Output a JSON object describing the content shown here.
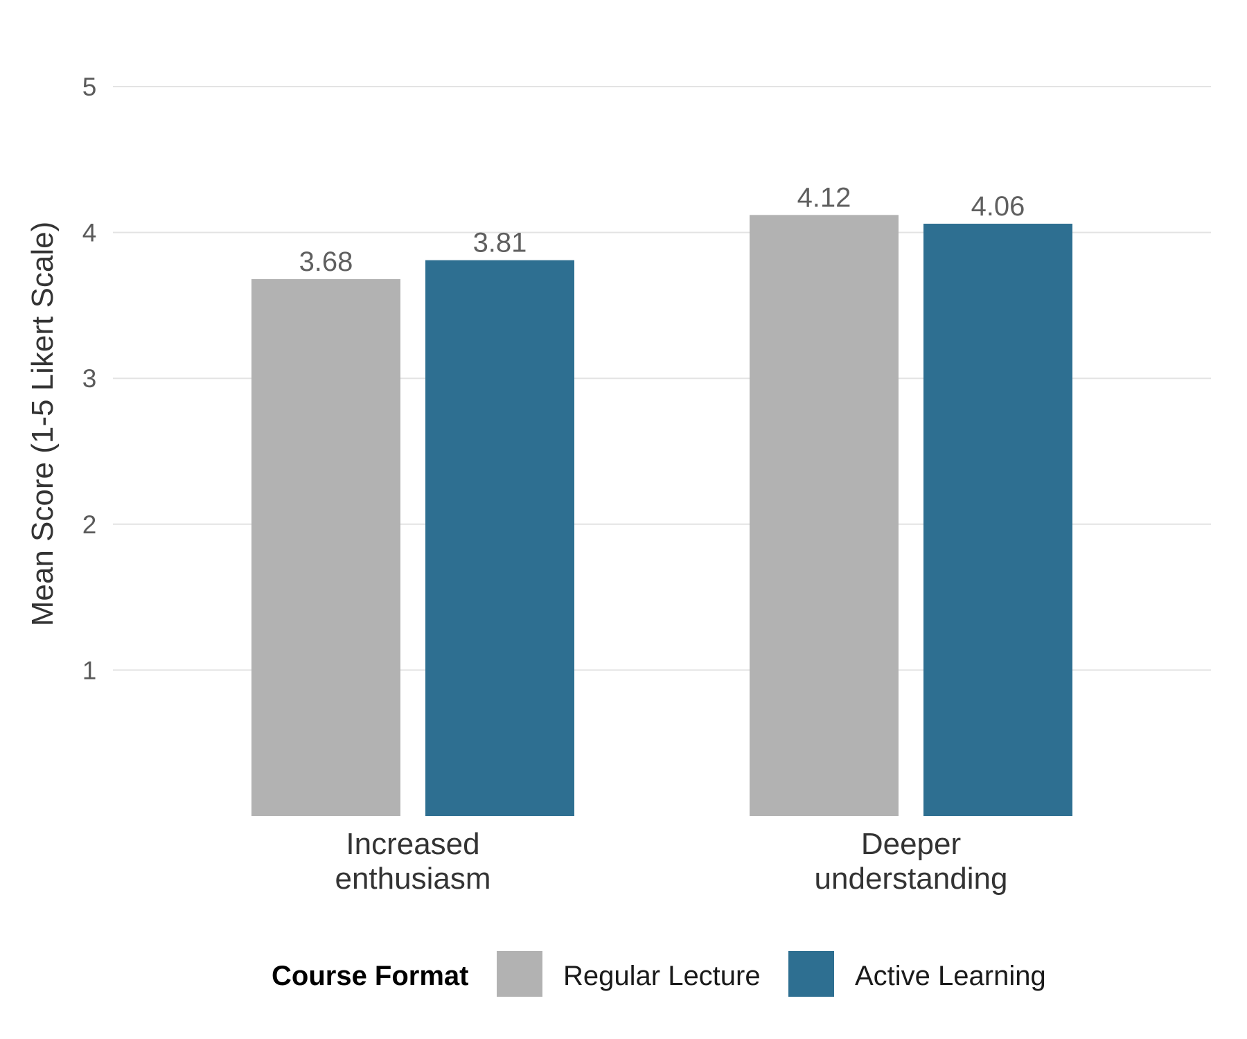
{
  "chart_data": {
    "type": "bar",
    "title": "",
    "xlabel": "",
    "ylabel": "Mean Score (1-5 Likert Scale)",
    "ylim": [
      0,
      5
    ],
    "yticks": [
      1,
      2,
      3,
      4,
      5
    ],
    "categories": [
      [
        "Increased",
        "enthusiasm"
      ],
      [
        "Deeper",
        "understanding"
      ]
    ],
    "series": [
      {
        "name": "Regular Lecture",
        "color": "#b2b2b2",
        "values": [
          3.68,
          4.12
        ],
        "labels": [
          "3.68",
          "4.12"
        ]
      },
      {
        "name": "Active Learning",
        "color": "#2e6f91",
        "values": [
          3.81,
          4.06
        ],
        "labels": [
          "3.81",
          "4.06"
        ]
      }
    ],
    "grid": true,
    "legend": {
      "title": "Course Format",
      "position": "bottom"
    }
  }
}
